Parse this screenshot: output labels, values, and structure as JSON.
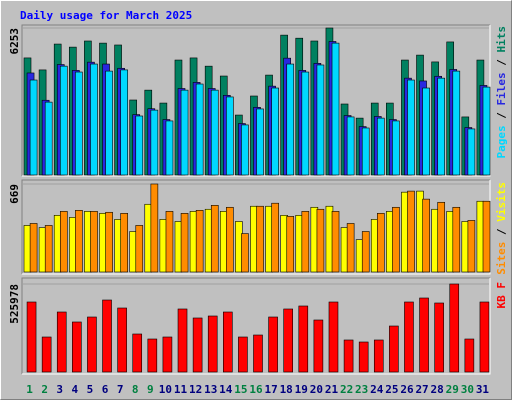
{
  "title": "Daily usage for March 2025",
  "legend_separator": " / ",
  "chart_data": [
    {
      "type": "bar",
      "ylim": [
        0,
        6253
      ],
      "yticks": [
        6253
      ],
      "series": [
        {
          "name": "Hits",
          "color": "#008060",
          "values": [
            4980,
            4470,
            5570,
            5440,
            5700,
            5610,
            5530,
            3190,
            3610,
            3060,
            4890,
            4980,
            4630,
            4210,
            2550,
            3360,
            4250,
            5950,
            5820,
            5700,
            6253,
            3020,
            2420,
            3060,
            3060,
            4890,
            5100,
            4810,
            5660,
            2470,
            4890
          ]
        },
        {
          "name": "Files",
          "color": "#2828e0",
          "values": [
            4340,
            3180,
            4700,
            4450,
            4800,
            4720,
            4540,
            2570,
            2820,
            2360,
            3680,
            3940,
            3680,
            3390,
            2190,
            2880,
            3780,
            4970,
            4450,
            4750,
            5680,
            2530,
            2060,
            2490,
            2360,
            4120,
            4000,
            4200,
            4490,
            2020,
            3810
          ]
        },
        {
          "name": "Pages",
          "color": "#00d8ff",
          "values": [
            4040,
            3100,
            4630,
            4380,
            4720,
            4420,
            4470,
            2510,
            2760,
            2300,
            3610,
            3870,
            3610,
            3320,
            2130,
            2810,
            3700,
            4720,
            4380,
            4680,
            5610,
            2470,
            2000,
            2420,
            2300,
            4040,
            3700,
            4120,
            4420,
            1960,
            3740
          ]
        }
      ]
    },
    {
      "type": "bar",
      "ylim": [
        0,
        669
      ],
      "yticks": [
        669
      ],
      "series": [
        {
          "name": "Visits",
          "color": "#ffff00",
          "values": [
            354,
            338,
            431,
            415,
            461,
            446,
            400,
            308,
            515,
            400,
            384,
            461,
            477,
            461,
            384,
            500,
            500,
            431,
            431,
            492,
            500,
            338,
            246,
            400,
            461,
            607,
            615,
            477,
            461,
            384,
            538
          ]
        },
        {
          "name": "Sites",
          "color": "#ff8c00",
          "values": [
            369,
            354,
            461,
            469,
            461,
            454,
            446,
            354,
            669,
            461,
            446,
            469,
            507,
            492,
            292,
            500,
            523,
            423,
            461,
            477,
            461,
            369,
            308,
            446,
            492,
            615,
            554,
            530,
            492,
            392,
            538
          ]
        }
      ]
    },
    {
      "type": "bar",
      "ylim": [
        0,
        525978
      ],
      "yticks": [
        525978
      ],
      "categories": [
        "1",
        "2",
        "3",
        "4",
        "5",
        "6",
        "7",
        "8",
        "9",
        "10",
        "11",
        "12",
        "13",
        "14",
        "15",
        "16",
        "17",
        "18",
        "19",
        "20",
        "21",
        "22",
        "23",
        "24",
        "25",
        "26",
        "27",
        "28",
        "29",
        "30",
        "31"
      ],
      "category_colors": [
        "#008040",
        "#008040",
        "#00007f",
        "#00007f",
        "#00007f",
        "#00007f",
        "#00007f",
        "#008040",
        "#008040",
        "#00007f",
        "#00007f",
        "#00007f",
        "#00007f",
        "#00007f",
        "#008040",
        "#008040",
        "#00007f",
        "#00007f",
        "#00007f",
        "#00007f",
        "#00007f",
        "#008040",
        "#008040",
        "#00007f",
        "#00007f",
        "#00007f",
        "#00007f",
        "#00007f",
        "#008040",
        "#008040",
        "#00007f"
      ],
      "series": [
        {
          "name": "KB F",
          "color": "#ff0000",
          "values": [
            418400,
            209200,
            358600,
            298900,
            328700,
            430300,
            382500,
            227100,
            197200,
            209200,
            376600,
            322800,
            334700,
            358600,
            209200,
            221100,
            328700,
            376600,
            394500,
            310800,
            418400,
            191300,
            179300,
            191300,
            274900,
            418400,
            442300,
            412400,
            525978,
            197200,
            418400
          ]
        }
      ]
    }
  ]
}
